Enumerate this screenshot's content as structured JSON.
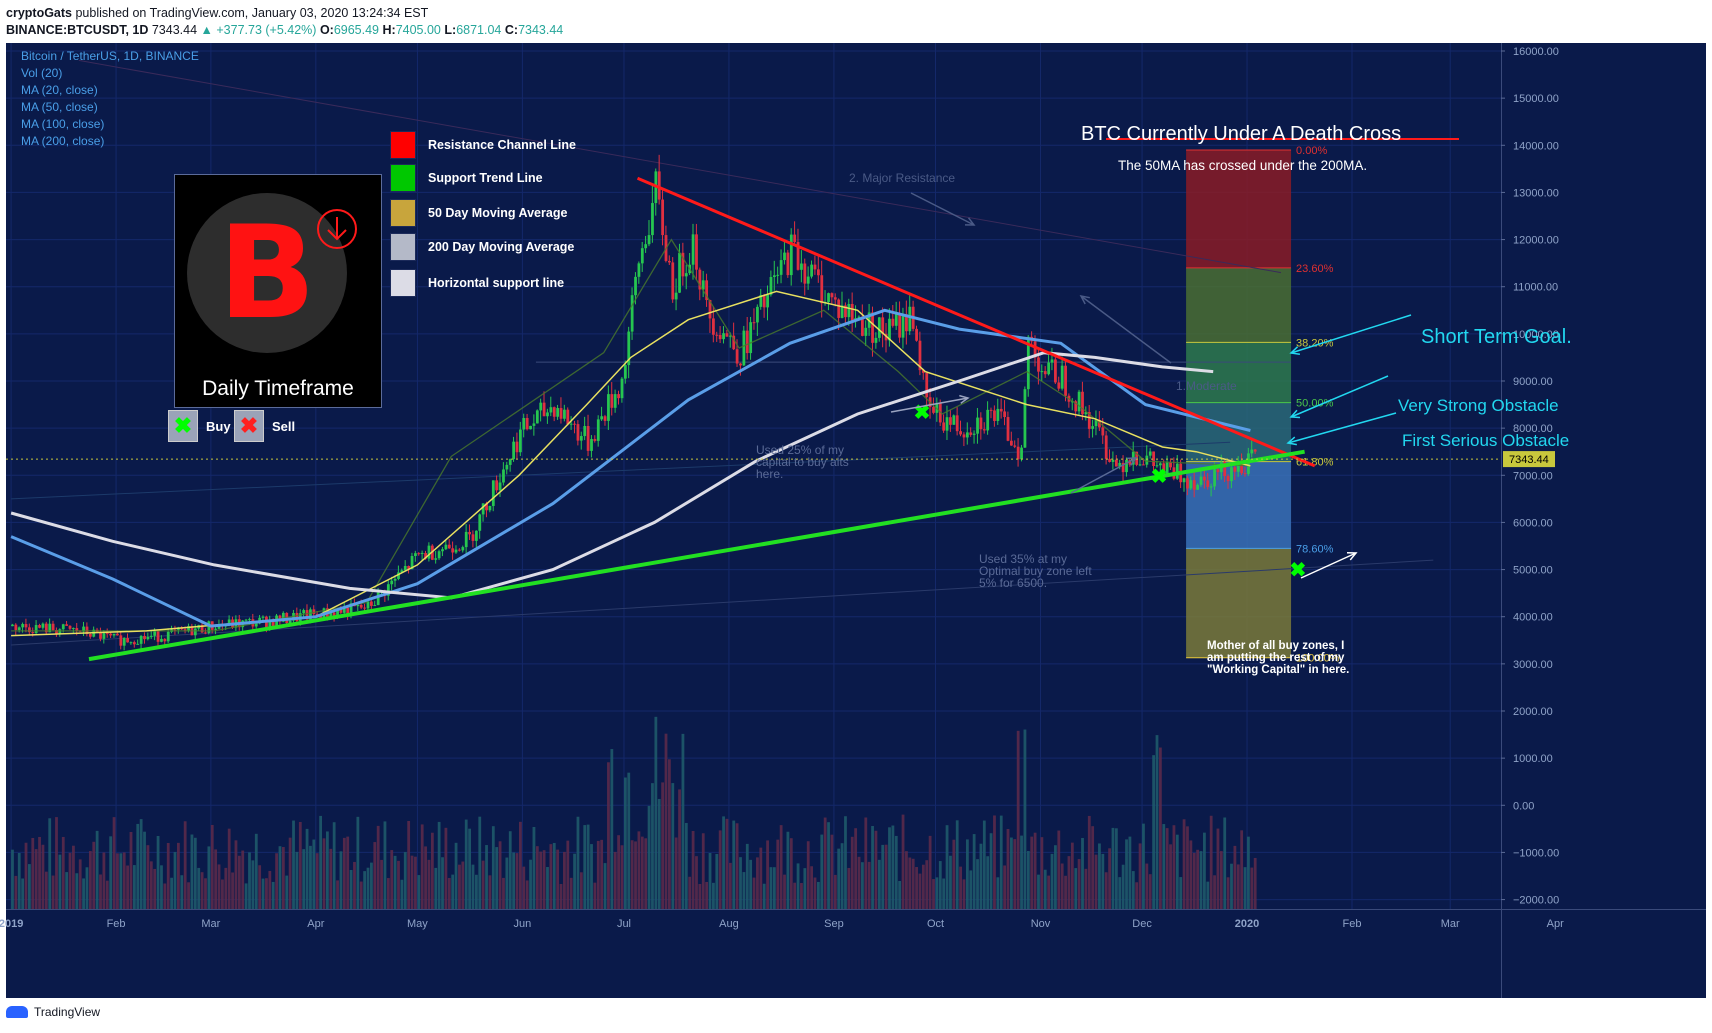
{
  "header": {
    "author": "cryptoGats",
    "published": "published on TradingView.com, January 03, 2020 13:24:34 EST",
    "symbol": "BINANCE:BTCUSDT, 1D",
    "price": "7343.44",
    "change": "▲ +377.73 (+5.42%)",
    "o_label": "O:",
    "o_val": "6965.49",
    "h_label": "H:",
    "h_val": "7405.00",
    "l_label": "L:",
    "l_val": "6871.04",
    "c_label": "C:",
    "c_val": "7343.44"
  },
  "indicators": [
    "Bitcoin / TetherUS, 1D, BINANCE",
    "Vol (20)",
    "MA (20, close)",
    "MA (50, close)",
    "MA (100, close)",
    "MA (200, close)"
  ],
  "legend_box": {
    "label": "Daily Timeframe",
    "symbol": "B"
  },
  "legend_items": [
    {
      "label": "Resistance Channel Line",
      "color": "#ff0000"
    },
    {
      "label": "Support Trend Line",
      "color": "#00c800"
    },
    {
      "label": "50 Day Moving Average",
      "color": "#c8a53c"
    },
    {
      "label": "200 Day Moving Average",
      "color": "#b4b9c8"
    },
    {
      "label": "Horizontal support line",
      "color": "#dcdce6"
    }
  ],
  "buy_sell": {
    "buy_label": "Buy",
    "sell_label": "Sell",
    "buy_color": "#00ff00",
    "sell_color": "#ff2020"
  },
  "annotations": {
    "title": "BTC Currently Under A Death Cross",
    "subtitle": "The 50MA has crossed under the 200MA.",
    "short_term_goal": "Short Term Goal.",
    "very_strong": "Very Strong Obstacle",
    "first_serious": "First Serious Obstacle",
    "major_resistance": "2. Major Resistance",
    "moderate": "1.Moderate",
    "used25": [
      "Used 25% of my",
      "capital to buy alts",
      "here."
    ],
    "used35": [
      "Used 35% at my",
      "Optimal buy zone left",
      "5% for 6500."
    ],
    "mother": [
      "Mother of all buy zones, I",
      "am putting the rest of my",
      "\"Working Capital\" in here."
    ]
  },
  "chart_data": {
    "type": "candlestick",
    "x_ticks": [
      "2019",
      "Feb",
      "Mar",
      "Apr",
      "May",
      "Jun",
      "Jul",
      "Aug",
      "Sep",
      "Oct",
      "Nov",
      "Dec",
      "2020",
      "Feb",
      "Mar",
      "Apr"
    ],
    "y_ticks": [
      "16000.00",
      "15000.00",
      "14000.00",
      "13000.00",
      "12000.00",
      "11000.00",
      "10000.00",
      "9000.00",
      "8000.00",
      "7000.00",
      "6000.00",
      "5000.00",
      "4000.00",
      "3000.00",
      "2000.00",
      "1000.00",
      "0.00",
      "−1000.00",
      "−2000.00"
    ],
    "ylim": [
      -2200,
      16100
    ],
    "last_price": {
      "value": 7343.44,
      "label": "7343.44"
    },
    "fib_levels": [
      {
        "label": "0.00%",
        "value": 13900,
        "color": "#8a1c26",
        "text_color": "#e03030"
      },
      {
        "label": "23.60%",
        "value": 11400,
        "color": "#4a6e32",
        "text_color": "#e03030"
      },
      {
        "label": "38.20%",
        "value": 9820,
        "color": "#2e7a4e",
        "text_color": "#c8c83c"
      },
      {
        "label": "50.00%",
        "value": 8540,
        "color": "#2a6a78",
        "text_color": "#4ac84a"
      },
      {
        "label": "61.80%",
        "value": 7290,
        "color": "#3a72b8",
        "text_color": "#c8c83c"
      },
      {
        "label": "78.60%",
        "value": 5450,
        "color": "#7a7a3a",
        "text_color": "#4a9fe8"
      },
      {
        "label": "100.00%",
        "value": 3130,
        "color": "",
        "text_color": "#e8c83c"
      }
    ],
    "price_path": [
      [
        0,
        3800
      ],
      [
        20,
        3700
      ],
      [
        31,
        3500
      ],
      [
        45,
        3600
      ],
      [
        59,
        3800
      ],
      [
        75,
        3900
      ],
      [
        90,
        4050
      ],
      [
        105,
        4200
      ],
      [
        120,
        5300
      ],
      [
        135,
        5650
      ],
      [
        150,
        7900
      ],
      [
        160,
        8500
      ],
      [
        170,
        7700
      ],
      [
        180,
        9000
      ],
      [
        185,
        11500
      ],
      [
        190,
        13000
      ],
      [
        195,
        11000
      ],
      [
        201,
        12000
      ],
      [
        205,
        10500
      ],
      [
        215,
        9600
      ],
      [
        230,
        11800
      ],
      [
        243,
        10600
      ],
      [
        250,
        10300
      ],
      [
        258,
        10000
      ],
      [
        266,
        10400
      ],
      [
        270,
        8400
      ],
      [
        280,
        8000
      ],
      [
        290,
        8300
      ],
      [
        298,
        7500
      ],
      [
        300,
        9900
      ],
      [
        305,
        9200
      ],
      [
        310,
        9100
      ],
      [
        315,
        8500
      ],
      [
        320,
        8000
      ],
      [
        326,
        7200
      ],
      [
        331,
        7500
      ],
      [
        340,
        7100
      ],
      [
        350,
        6900
      ],
      [
        358,
        7100
      ],
      [
        366,
        7300
      ],
      [
        367,
        7343
      ]
    ],
    "ma50": [
      [
        0,
        3600
      ],
      [
        40,
        3700
      ],
      [
        90,
        4000
      ],
      [
        120,
        5100
      ],
      [
        150,
        7000
      ],
      [
        170,
        8500
      ],
      [
        183,
        9500
      ],
      [
        200,
        10300
      ],
      [
        226,
        10900
      ],
      [
        250,
        10500
      ],
      [
        270,
        9200
      ],
      [
        300,
        8500
      ],
      [
        320,
        8200
      ],
      [
        340,
        7600
      ],
      [
        350,
        7500
      ],
      [
        366,
        7200
      ]
    ],
    "ma100": [
      [
        0,
        5700
      ],
      [
        30,
        4800
      ],
      [
        59,
        3800
      ],
      [
        90,
        4000
      ],
      [
        120,
        4700
      ],
      [
        160,
        6400
      ],
      [
        200,
        8600
      ],
      [
        230,
        9800
      ],
      [
        258,
        10500
      ],
      [
        280,
        10100
      ],
      [
        310,
        9800
      ],
      [
        335,
        8500
      ],
      [
        366,
        7950
      ]
    ],
    "ma200": [
      [
        0,
        6200
      ],
      [
        30,
        5600
      ],
      [
        60,
        5100
      ],
      [
        100,
        4600
      ],
      [
        130,
        4400
      ],
      [
        160,
        5000
      ],
      [
        190,
        6000
      ],
      [
        220,
        7300
      ],
      [
        250,
        8300
      ],
      [
        280,
        9000
      ],
      [
        305,
        9600
      ],
      [
        320,
        9500
      ],
      [
        340,
        9300
      ],
      [
        355,
        9200
      ]
    ],
    "ma20": [
      [
        0,
        3700
      ],
      [
        60,
        3700
      ],
      [
        105,
        4300
      ],
      [
        130,
        7400
      ],
      [
        175,
        9600
      ],
      [
        195,
        12000
      ],
      [
        215,
        9700
      ],
      [
        240,
        10500
      ],
      [
        262,
        9200
      ],
      [
        275,
        8300
      ],
      [
        300,
        9200
      ],
      [
        315,
        8500
      ],
      [
        335,
        7300
      ],
      [
        366,
        7200
      ]
    ],
    "resistance_line": [
      [
        185,
        13300
      ],
      [
        385,
        7200
      ]
    ],
    "support_line": [
      [
        23,
        3100
      ],
      [
        382,
        7500
      ]
    ],
    "x_range": [
      -1.5,
      440
    ],
    "volume_note": "volume histogram bars"
  }
}
